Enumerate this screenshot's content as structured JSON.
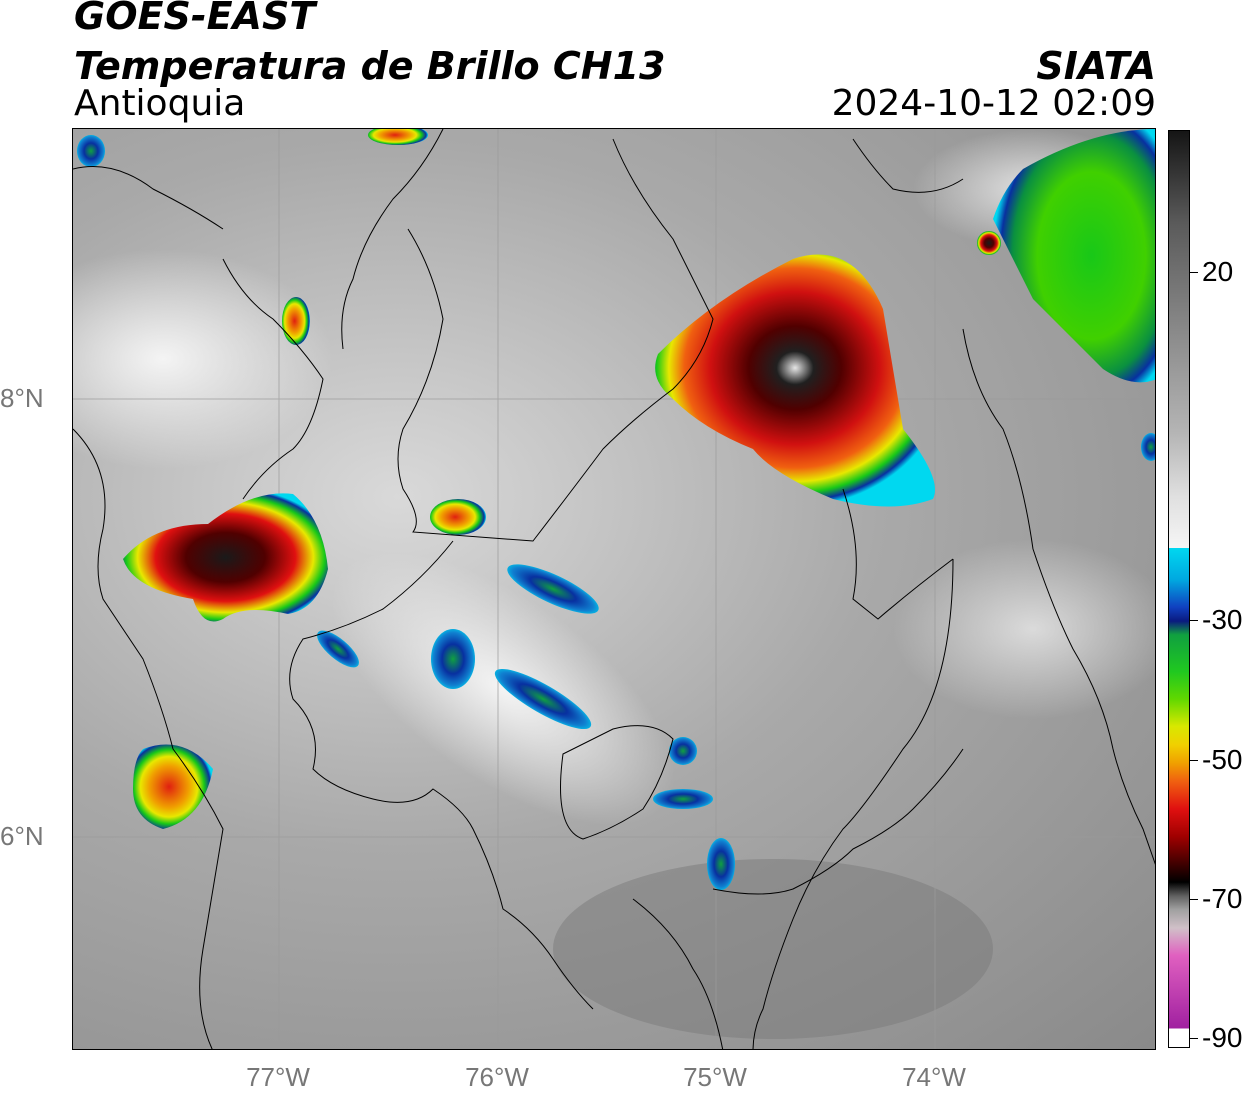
{
  "header": {
    "satellite": "GOES-EAST",
    "product": "Temperatura de Brillo CH13",
    "region": "Antioquia",
    "organization": "SIATA",
    "timestamp": "2024-10-12 02:09"
  },
  "axes": {
    "lat_labels": [
      "8°N",
      "6°N"
    ],
    "lon_labels": [
      "77°W",
      "76°W",
      "75°W",
      "74°W"
    ]
  },
  "colorbar": {
    "ticks": [
      "20",
      "-30",
      "-50",
      "-70",
      "-90"
    ],
    "colors": {
      "warm_gray": "#bdbdbd",
      "cyan": "#00d8f0",
      "blue": "#1030b0",
      "green": "#18c818",
      "yellow": "#f0f000",
      "red": "#e01010",
      "darkred": "#600000",
      "black": "#000000",
      "magenta": "#c020c0"
    }
  }
}
